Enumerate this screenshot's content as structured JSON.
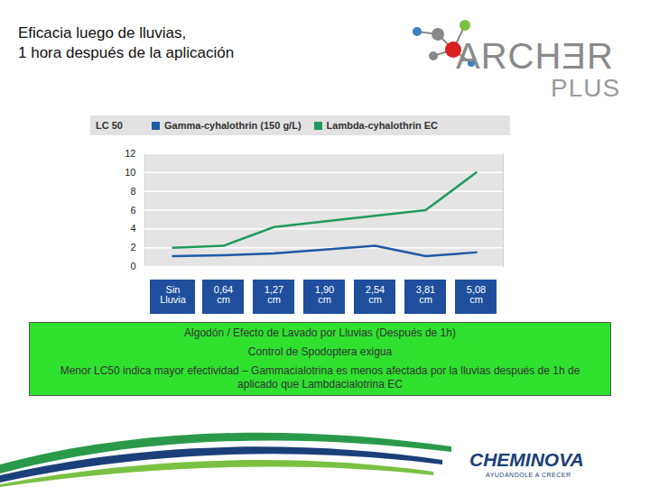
{
  "chart_data": {
    "type": "line",
    "title": "Eficacia luego de lluvias,\n1 hora después de la aplicación",
    "ylabel": "LC 50",
    "categories": [
      "Sin Lluvia",
      "0,64 cm",
      "1,27 cm",
      "1,90 cm",
      "2,54 cm",
      "3,81 cm",
      "5,08 cm"
    ],
    "series": [
      {
        "name": "Gamma-cyhalothrin (150 g/L)",
        "color": "#1f5aa6",
        "values": [
          1.1,
          1.2,
          1.4,
          1.8,
          2.2,
          1.1,
          1.5
        ]
      },
      {
        "name": "Lambda-cyhalothrin EC",
        "color": "#1f9a5c",
        "values": [
          2.0,
          2.2,
          4.2,
          4.8,
          5.4,
          6.0,
          10.0
        ]
      }
    ],
    "ylim": [
      0,
      12
    ],
    "yticks": [
      0,
      2,
      4,
      6,
      8,
      10,
      12
    ],
    "grid": true,
    "legend": "top",
    "annotations": [
      "Algodón / Efecto de Lavado por Lluvias (Después de 1h)",
      "Control de Spodoptera exigua",
      "Menor LC50 indica mayor efectividad – Gammacialotrina es menos afectada por la lluvias después de 1h de aplicado que Lambdacialotrina EC"
    ]
  },
  "branding": {
    "product": "ARCHƎR",
    "product_line": "PLUS",
    "company": "CHEMINOVA",
    "slogan": "AYUDANDOLE A CRECER"
  }
}
